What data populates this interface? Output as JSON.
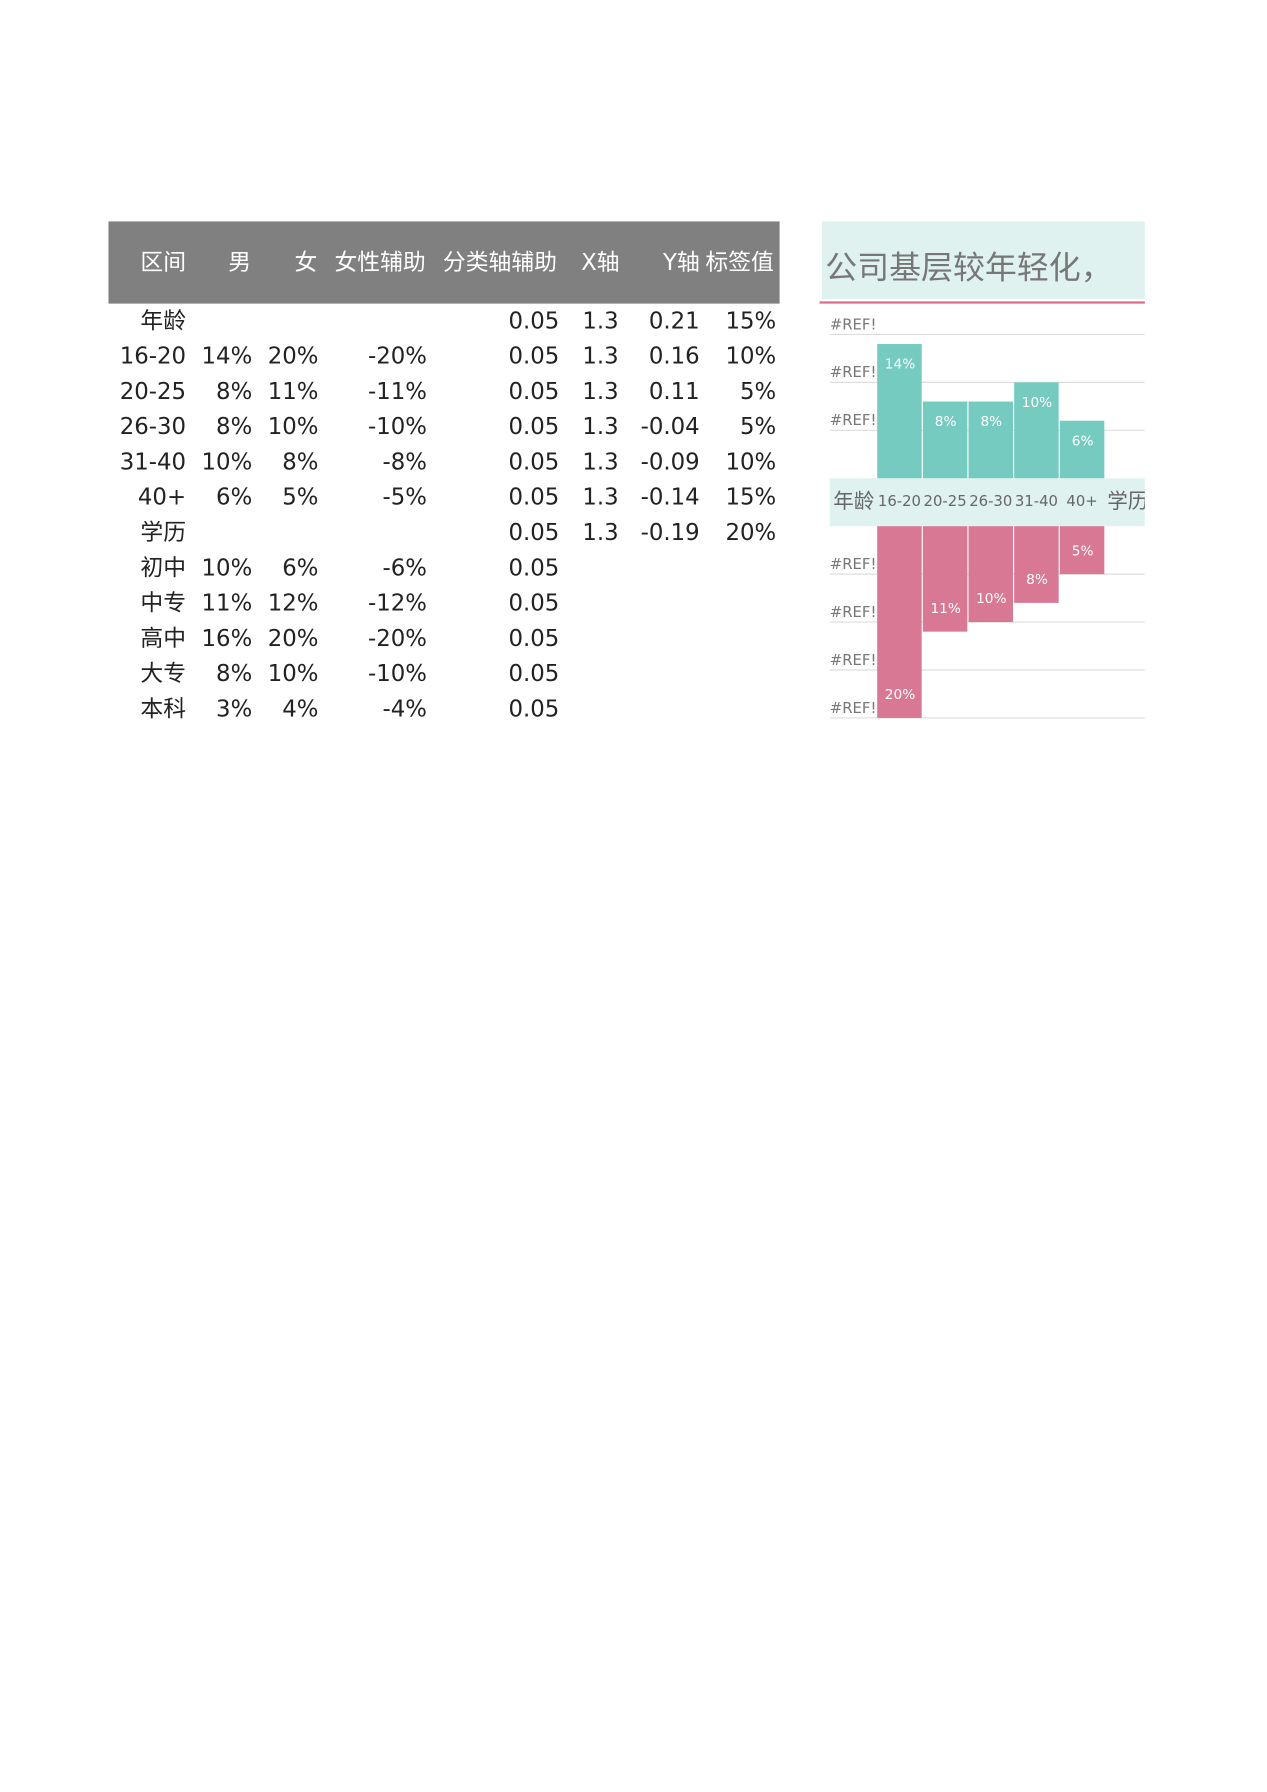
{
  "table": {
    "header": [
      "区间",
      "男",
      "女",
      "女性辅助",
      "分类轴辅助",
      "X轴",
      "Y轴",
      "标签值"
    ],
    "rows": [
      [
        "年龄",
        null,
        null,
        null,
        "0.05",
        "1.3",
        "0.21",
        "15%"
      ],
      [
        "16-20",
        "14%",
        "20%",
        "-20%",
        "0.05",
        "1.3",
        "0.16",
        "10%"
      ],
      [
        "20-25",
        "8%",
        "11%",
        "-11%",
        "0.05",
        "1.3",
        "0.11",
        "5%"
      ],
      [
        "26-30",
        "8%",
        "10%",
        "-10%",
        "0.05",
        "1.3",
        "-0.04",
        "5%"
      ],
      [
        "31-40",
        "10%",
        "8%",
        "-8%",
        "0.05",
        "1.3",
        "-0.09",
        "10%"
      ],
      [
        "40+",
        "6%",
        "5%",
        "-5%",
        "0.05",
        "1.3",
        "-0.14",
        "15%"
      ],
      [
        "学历",
        null,
        null,
        null,
        "0.05",
        "1.3",
        "-0.19",
        "20%"
      ],
      [
        "初中",
        "10%",
        "6%",
        "-6%",
        "0.05",
        null,
        null,
        null
      ],
      [
        "中专",
        "11%",
        "12%",
        "-12%",
        "0.05",
        null,
        null,
        null
      ],
      [
        "高中",
        "16%",
        "20%",
        "-20%",
        "0.05",
        null,
        null,
        null
      ],
      [
        "大专",
        "8%",
        "10%",
        "-10%",
        "0.05",
        null,
        null,
        null
      ],
      [
        "本科",
        "3%",
        "4%",
        "-4%",
        "0.05",
        null,
        null,
        null
      ]
    ]
  },
  "chart_data": {
    "type": "bar",
    "title": "公司基层较年轻化，",
    "categories": [
      "年龄",
      "16-20",
      "20-25",
      "26-30",
      "31-40",
      "40+",
      "学历"
    ],
    "series": [
      {
        "color": "#76cbc1",
        "values": [
          null,
          14,
          8,
          8,
          10,
          6,
          null
        ],
        "value_labels": [
          null,
          "14%",
          "8%",
          "8%",
          "10%",
          "6%",
          null
        ]
      },
      {
        "color": "#d97895",
        "axis": "y2",
        "values": [
          null,
          20,
          11,
          10,
          8,
          5,
          null
        ],
        "value_labels": [
          null,
          "20%",
          "11%",
          "10%",
          "8%",
          "5%",
          null
        ]
      }
    ],
    "ylim": [
      0,
      18
    ],
    "yticks": [
      {
        "value": 5,
        "label": "#REF!"
      },
      {
        "value": 10,
        "label": "#REF!"
      },
      {
        "value": 15,
        "label": "#REF!"
      }
    ],
    "y2lim": [
      0,
      20
    ],
    "y2ticks": [
      {
        "value": 5,
        "label": "#REF!"
      },
      {
        "value": 10,
        "label": "#REF!"
      },
      {
        "value": 15,
        "label": "#REF!"
      },
      {
        "value": 20,
        "label": "#REF!"
      }
    ],
    "grid": true
  }
}
